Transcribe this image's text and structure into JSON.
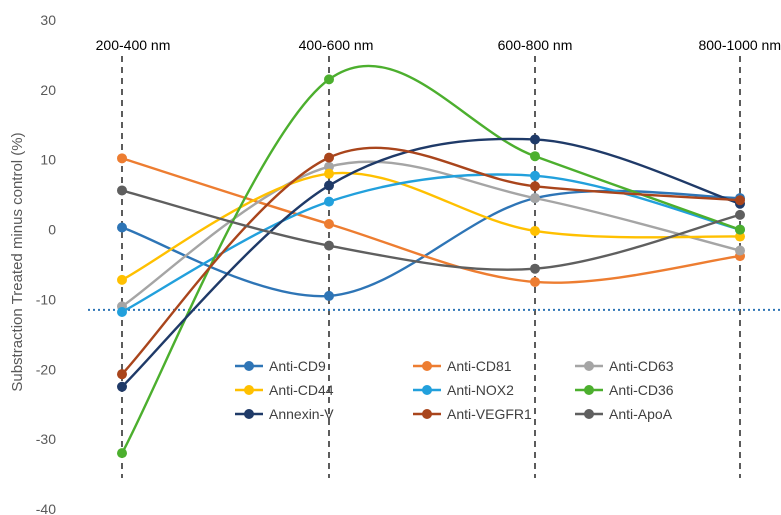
{
  "chart_data": {
    "type": "line",
    "title": "",
    "xlabel": "",
    "ylabel": "Substraction Treated minus control (%)",
    "categories": [
      "200-400 nm",
      "400-600 nm",
      "600-800 nm",
      "800-1000 nm"
    ],
    "ylim": [
      -40,
      30
    ],
    "yticks": [
      30,
      20,
      10,
      0,
      -10,
      -20,
      -30,
      -40
    ],
    "grid": false,
    "smooth": true,
    "category_guides": "dashed vertical lines",
    "reference_line": {
      "y": -11.5,
      "style": "dotted",
      "color": "#2E75B6"
    },
    "legend_position": "bottom-center",
    "series": [
      {
        "name": "Anti-CD9",
        "color": "#2E75B6",
        "values": [
          0.3,
          -9.5,
          4.5,
          4.5
        ]
      },
      {
        "name": "Anti-CD81",
        "color": "#ED7D31",
        "values": [
          10.2,
          0.8,
          -7.5,
          -3.8
        ]
      },
      {
        "name": "Anti-CD63",
        "color": "#A5A5A5",
        "values": [
          -11.0,
          9.0,
          4.5,
          -3.0
        ]
      },
      {
        "name": "Anti-CD44",
        "color": "#FFC000",
        "values": [
          -7.2,
          8.0,
          -0.2,
          -1.0
        ]
      },
      {
        "name": "Anti-NOX2",
        "color": "#22A0DC",
        "values": [
          -11.8,
          4.0,
          7.7,
          0.0
        ]
      },
      {
        "name": "Anti-CD36",
        "color": "#4CAF2E",
        "values": [
          -32.0,
          21.5,
          10.5,
          0.0
        ]
      },
      {
        "name": "Annexin-V",
        "color": "#1F3A68",
        "values": [
          -22.5,
          6.3,
          12.9,
          3.7
        ]
      },
      {
        "name": "Anti-VEGFR1",
        "color": "#A9451C",
        "values": [
          -20.7,
          10.3,
          6.2,
          4.2
        ]
      },
      {
        "name": "Anti-ApoA",
        "color": "#5F5F5F",
        "values": [
          5.6,
          -2.3,
          -5.6,
          2.1
        ]
      }
    ]
  }
}
